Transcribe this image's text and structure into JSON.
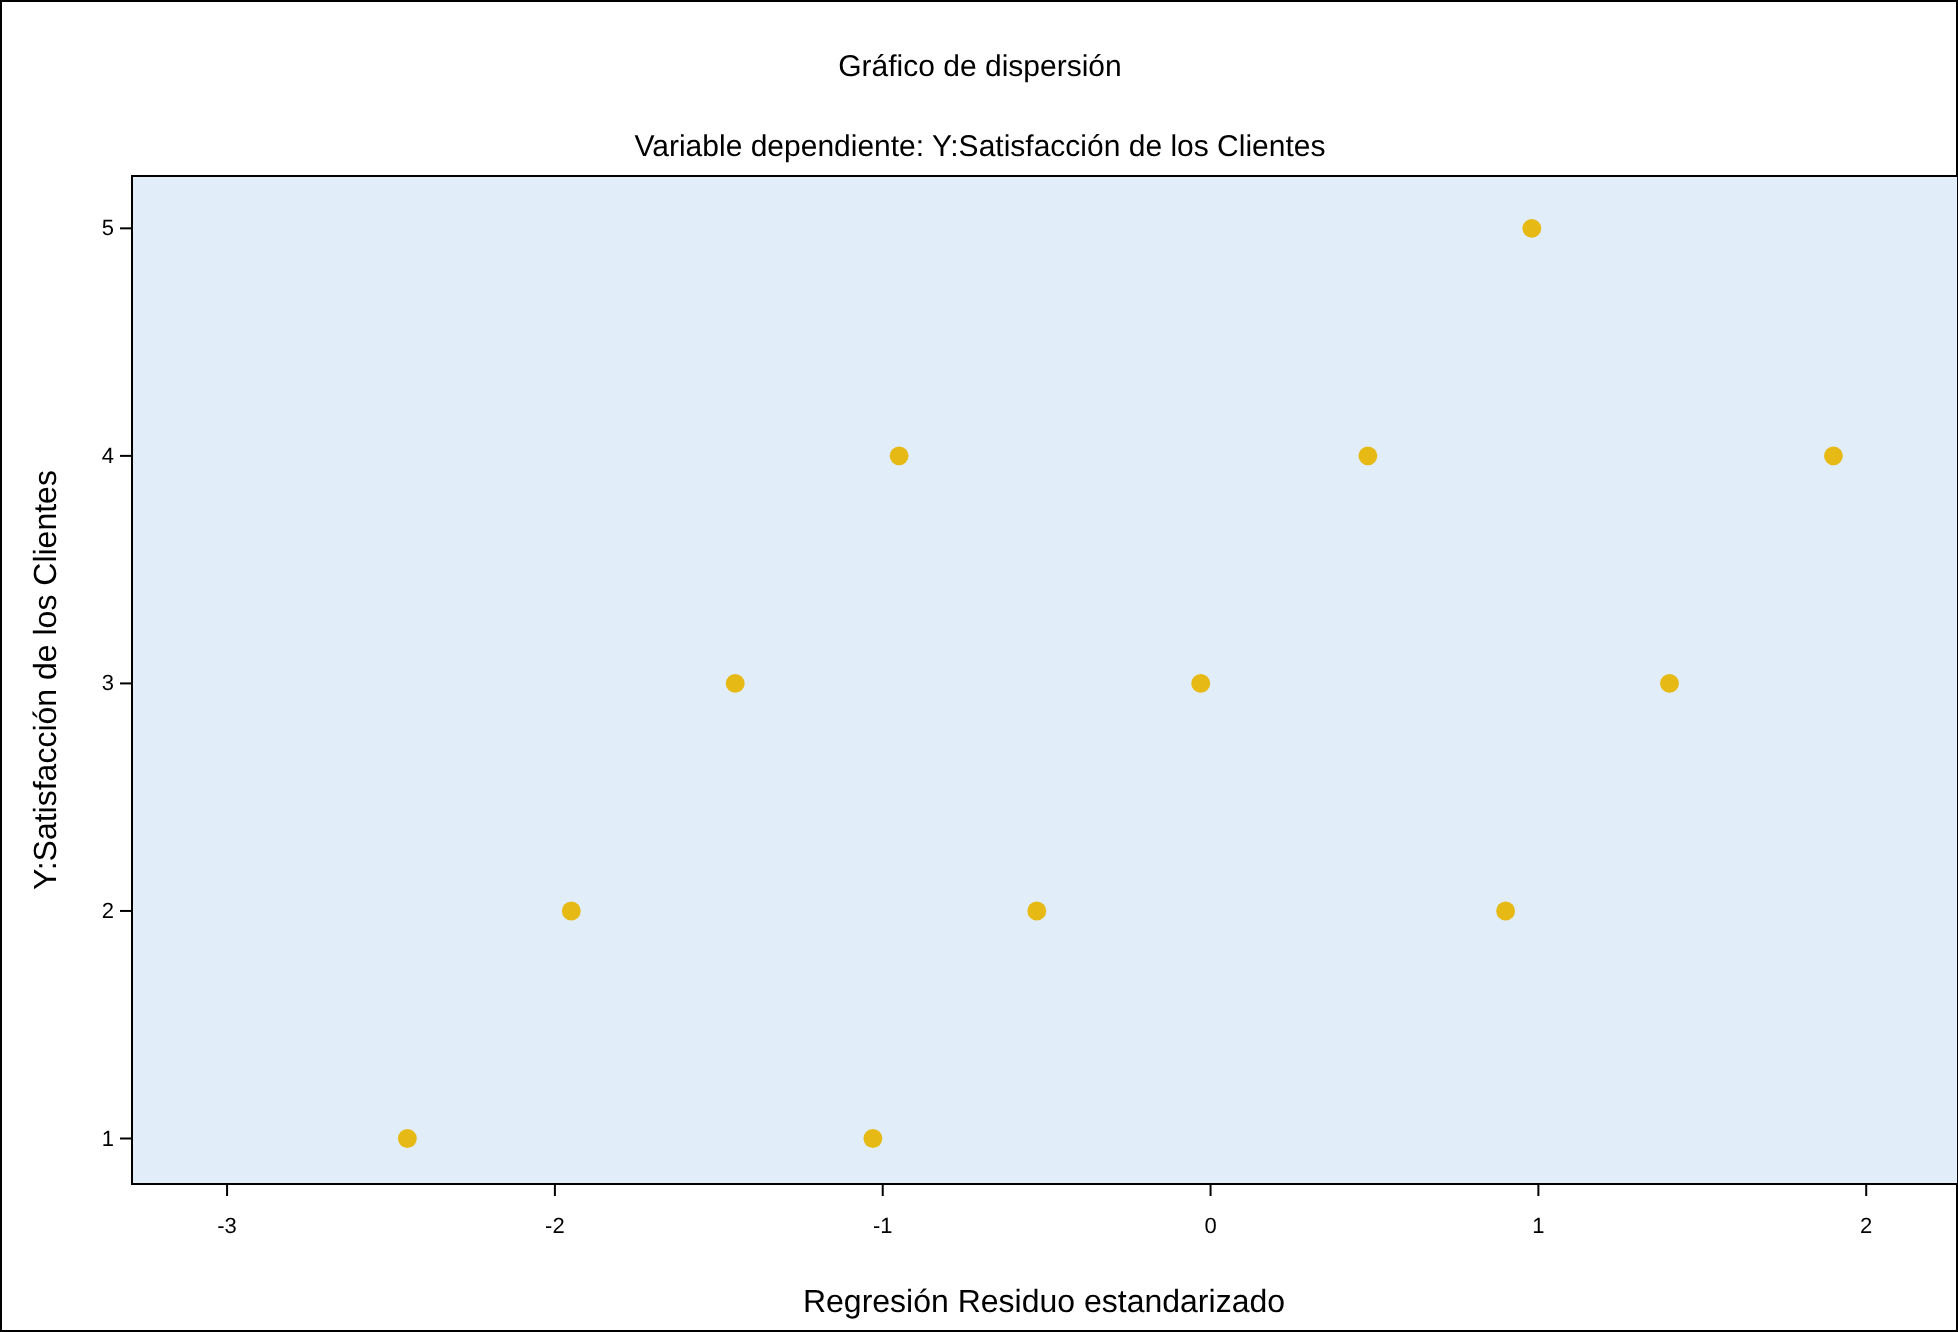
{
  "chart_data": {
    "type": "scatter",
    "title": "Gráfico de dispersión",
    "subtitle": "Variable dependiente: Y:Satisfacción de los Clientes",
    "xlabel": "Regresión Residuo estandarizado",
    "ylabel": "Y:Satisfacción de los Clientes",
    "x": [
      -2.45,
      -1.95,
      -1.45,
      -0.95,
      -1.03,
      -0.53,
      -0.03,
      0.48,
      0.98,
      0.9,
      1.4,
      1.9
    ],
    "values": [
      1,
      2,
      3,
      4,
      1,
      2,
      3,
      4,
      5,
      2,
      3,
      4
    ],
    "color": "#e6b914",
    "marker": "circle",
    "grid": false,
    "xlim": [
      -3.29,
      2.28
    ],
    "xticks": [
      -3,
      -2,
      -1,
      0,
      1,
      2
    ],
    "ylim": [
      0.8,
      5.23
    ],
    "yticks": [
      1,
      2,
      3,
      4,
      5
    ]
  }
}
